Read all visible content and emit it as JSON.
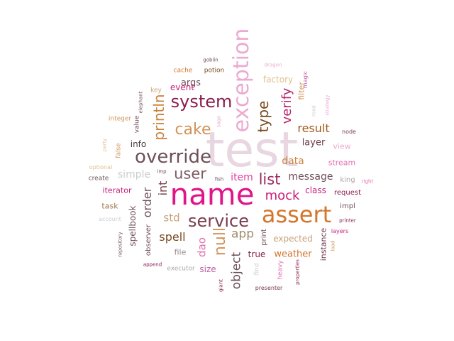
{
  "words": [
    {
      "text": "test",
      "color": "#e8d6e0"
    },
    {
      "text": "name",
      "color": "#e0158a"
    },
    {
      "text": "assert",
      "color": "#d2762c"
    },
    {
      "text": "exception",
      "color": "#ecaad0"
    },
    {
      "text": "override",
      "color": "#6e5058"
    },
    {
      "text": "service",
      "color": "#7a3e4e"
    },
    {
      "text": "system",
      "color": "#8a1e4e"
    },
    {
      "text": "cake",
      "color": "#d2945a"
    },
    {
      "text": "user",
      "color": "#7c5a62"
    },
    {
      "text": "list",
      "color": "#9e2a5e"
    },
    {
      "text": "null",
      "color": "#d2945a"
    },
    {
      "text": "println",
      "color": "#c9823e"
    },
    {
      "text": "mock",
      "color": "#c81c78"
    },
    {
      "text": "type",
      "color": "#7a4a20"
    },
    {
      "text": "verify",
      "color": "#b8246a"
    },
    {
      "text": "object",
      "color": "#6e5058"
    },
    {
      "text": "result",
      "color": "#a05a1a"
    },
    {
      "text": "app",
      "color": "#a08a6e"
    },
    {
      "text": "spell",
      "color": "#7a4a20"
    },
    {
      "text": "dao",
      "color": "#e070b0"
    },
    {
      "text": "int",
      "color": "#7a3e4e"
    },
    {
      "text": "order",
      "color": "#6e5058"
    },
    {
      "text": "std",
      "color": "#c9a27a"
    },
    {
      "text": "item",
      "color": "#e040a0"
    },
    {
      "text": "message",
      "color": "#6e5058"
    },
    {
      "text": "simple",
      "color": "#cccccc"
    },
    {
      "text": "data",
      "color": "#c9823e"
    },
    {
      "text": "layer",
      "color": "#6e3a4a"
    },
    {
      "text": "weather",
      "color": "#d2762c"
    },
    {
      "text": "expected",
      "color": "#c9a27a"
    },
    {
      "text": "spellbook",
      "color": "#6e5058"
    },
    {
      "text": "info",
      "color": "#4a3a3e"
    },
    {
      "text": "args",
      "color": "#6e5058"
    },
    {
      "text": "event",
      "color": "#c81c78"
    },
    {
      "text": "factory",
      "color": "#e0c090"
    },
    {
      "text": "true",
      "color": "#8a1e4e"
    },
    {
      "text": "size",
      "color": "#c060a0"
    },
    {
      "text": "class",
      "color": "#c81c78"
    },
    {
      "text": "stream",
      "color": "#e070b0"
    },
    {
      "text": "instance",
      "color": "#6e3a4a"
    },
    {
      "text": "file",
      "color": "#9a8a8e"
    },
    {
      "text": "iterator",
      "color": "#c81c78"
    },
    {
      "text": "task",
      "color": "#a07a50"
    },
    {
      "text": "view",
      "color": "#ecaad0"
    },
    {
      "text": "filter",
      "color": "#d2945a"
    },
    {
      "text": "king",
      "color": "#aaaaaa"
    },
    {
      "text": "request",
      "color": "#8a1e4e"
    },
    {
      "text": "impl",
      "color": "#6e5058"
    },
    {
      "text": "print",
      "color": "#6e5058"
    },
    {
      "text": "observer",
      "color": "#6e5058"
    },
    {
      "text": "executor",
      "color": "#aaaaaa"
    },
    {
      "text": "find",
      "color": "#cccccc"
    },
    {
      "text": "heavy",
      "color": "#e070b0"
    },
    {
      "text": "value",
      "color": "#6e5058"
    },
    {
      "text": "integer",
      "color": "#d2945a"
    },
    {
      "text": "false",
      "color": "#d2945a"
    },
    {
      "text": "create",
      "color": "#6e5058"
    },
    {
      "text": "optional",
      "color": "#e0c090"
    },
    {
      "text": "account",
      "color": "#cccccc"
    },
    {
      "text": "key",
      "color": "#c9a27a"
    },
    {
      "text": "cache",
      "color": "#d2762c"
    },
    {
      "text": "potion",
      "color": "#7a4a20"
    },
    {
      "text": "goblin",
      "color": "#6e5058"
    },
    {
      "text": "dragon",
      "color": "#ecaad0"
    },
    {
      "text": "magic",
      "color": "#c060a0"
    },
    {
      "text": "read",
      "color": "#cccccc"
    },
    {
      "text": "strategy",
      "color": "#ecaad0"
    },
    {
      "text": "node",
      "color": "#7a3e4e"
    },
    {
      "text": "right",
      "color": "#e070b0"
    },
    {
      "text": "layers",
      "color": "#c81c78"
    },
    {
      "text": "printer",
      "color": "#8a1e4e"
    },
    {
      "text": "load",
      "color": "#d2945a"
    },
    {
      "text": "properties",
      "color": "#8a1e4e"
    },
    {
      "text": "presenter",
      "color": "#7a3e4e"
    },
    {
      "text": "giant",
      "color": "#8a1e4e"
    },
    {
      "text": "append",
      "color": "#8a1e4e"
    },
    {
      "text": "repository",
      "color": "#6e5058"
    },
    {
      "text": "fish",
      "color": "#6e5058"
    },
    {
      "text": "imp",
      "color": "#6e5058"
    },
    {
      "text": "party",
      "color": "#e0c090"
    },
    {
      "text": "elephant",
      "color": "#6e5058"
    },
    {
      "text": "sage",
      "color": "#ecaad0"
    }
  ]
}
